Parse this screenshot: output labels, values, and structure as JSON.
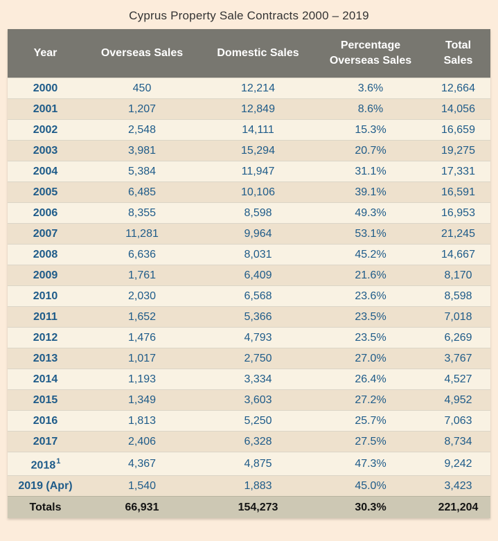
{
  "title": "Cyprus Property Sale Contracts 2000 – 2019",
  "colors": {
    "page_background": "#fcecdb",
    "header_background": "#787770",
    "header_text": "#ffffff",
    "row_light": "#f9f2e3",
    "row_dark": "#eee1cd",
    "data_text_blue": "#1e5b89",
    "totals_background": "#cdc8b4",
    "totals_text": "#121212"
  },
  "table": {
    "columns": [
      "Year",
      "Overseas Sales",
      "Domestic Sales",
      "Percentage Overseas Sales",
      "Total Sales"
    ],
    "rows": [
      {
        "year": "2000",
        "overseas": "450",
        "domestic": "12,214",
        "pct": "3.6%",
        "total": "12,664"
      },
      {
        "year": "2001",
        "overseas": "1,207",
        "domestic": "12,849",
        "pct": "8.6%",
        "total": "14,056"
      },
      {
        "year": "2002",
        "overseas": "2,548",
        "domestic": "14,111",
        "pct": "15.3%",
        "total": "16,659"
      },
      {
        "year": "2003",
        "overseas": "3,981",
        "domestic": "15,294",
        "pct": "20.7%",
        "total": "19,275"
      },
      {
        "year": "2004",
        "overseas": "5,384",
        "domestic": "11,947",
        "pct": "31.1%",
        "total": "17,331"
      },
      {
        "year": "2005",
        "overseas": "6,485",
        "domestic": "10,106",
        "pct": "39.1%",
        "total": "16,591"
      },
      {
        "year": "2006",
        "overseas": "8,355",
        "domestic": "8,598",
        "pct": "49.3%",
        "total": "16,953"
      },
      {
        "year": "2007",
        "overseas": "11,281",
        "domestic": "9,964",
        "pct": "53.1%",
        "total": "21,245"
      },
      {
        "year": "2008",
        "overseas": "6,636",
        "domestic": "8,031",
        "pct": "45.2%",
        "total": "14,667"
      },
      {
        "year": "2009",
        "overseas": "1,761",
        "domestic": "6,409",
        "pct": "21.6%",
        "total": "8,170"
      },
      {
        "year": "2010",
        "overseas": "2,030",
        "domestic": "6,568",
        "pct": "23.6%",
        "total": "8,598"
      },
      {
        "year": "2011",
        "overseas": "1,652",
        "domestic": "5,366",
        "pct": "23.5%",
        "total": "7,018"
      },
      {
        "year": "2012",
        "overseas": "1,476",
        "domestic": "4,793",
        "pct": "23.5%",
        "total": "6,269"
      },
      {
        "year": "2013",
        "overseas": "1,017",
        "domestic": "2,750",
        "pct": "27.0%",
        "total": "3,767"
      },
      {
        "year": "2014",
        "overseas": "1,193",
        "domestic": "3,334",
        "pct": "26.4%",
        "total": "4,527"
      },
      {
        "year": "2015",
        "overseas": "1,349",
        "domestic": "3,603",
        "pct": "27.2%",
        "total": "4,952"
      },
      {
        "year": "2016",
        "overseas": "1,813",
        "domestic": "5,250",
        "pct": "25.7%",
        "total": "7,063"
      },
      {
        "year": "2017",
        "overseas": "2,406",
        "domestic": "6,328",
        "pct": "27.5%",
        "total": "8,734"
      },
      {
        "year": "2018",
        "year_sup": "1",
        "overseas": "4,367",
        "domestic": "4,875",
        "pct": "47.3%",
        "total": "9,242"
      },
      {
        "year": "2019 (Apr)",
        "overseas": "1,540",
        "domestic": "1,883",
        "pct": "45.0%",
        "total": "3,423"
      }
    ],
    "totals": {
      "label": "Totals",
      "overseas": "66,931",
      "domestic": "154,273",
      "pct": "30.3%",
      "total": "221,204"
    }
  },
  "chart_data": {
    "type": "table",
    "title": "Cyprus Property Sale Contracts 2000 – 2019",
    "columns": [
      "Year",
      "Overseas Sales",
      "Domestic Sales",
      "Percentage Overseas Sales",
      "Total Sales"
    ],
    "categories": [
      "2000",
      "2001",
      "2002",
      "2003",
      "2004",
      "2005",
      "2006",
      "2007",
      "2008",
      "2009",
      "2010",
      "2011",
      "2012",
      "2013",
      "2014",
      "2015",
      "2016",
      "2017",
      "2018",
      "2019 (Apr)"
    ],
    "series": [
      {
        "name": "Overseas Sales",
        "values": [
          450,
          1207,
          2548,
          3981,
          5384,
          6485,
          8355,
          11281,
          6636,
          1761,
          2030,
          1652,
          1476,
          1017,
          1193,
          1349,
          1813,
          2406,
          4367,
          1540
        ]
      },
      {
        "name": "Domestic Sales",
        "values": [
          12214,
          12849,
          14111,
          15294,
          11947,
          10106,
          8598,
          9964,
          8031,
          6409,
          6568,
          5366,
          4793,
          2750,
          3334,
          3603,
          5250,
          6328,
          4875,
          1883
        ]
      },
      {
        "name": "Percentage Overseas Sales",
        "values": [
          3.6,
          8.6,
          15.3,
          20.7,
          31.1,
          39.1,
          49.3,
          53.1,
          45.2,
          21.6,
          23.6,
          23.5,
          23.5,
          27.0,
          26.4,
          27.2,
          25.7,
          27.5,
          47.3,
          45.0
        ]
      },
      {
        "name": "Total Sales",
        "values": [
          12664,
          14056,
          16659,
          19275,
          17331,
          16591,
          16953,
          21245,
          14667,
          8170,
          8598,
          7018,
          6269,
          3767,
          4527,
          4952,
          7063,
          8734,
          9242,
          3423
        ]
      }
    ],
    "totals": {
      "Overseas Sales": 66931,
      "Domestic Sales": 154273,
      "Percentage Overseas Sales": 30.3,
      "Total Sales": 221204
    },
    "footnote_marker_on": "2018"
  }
}
